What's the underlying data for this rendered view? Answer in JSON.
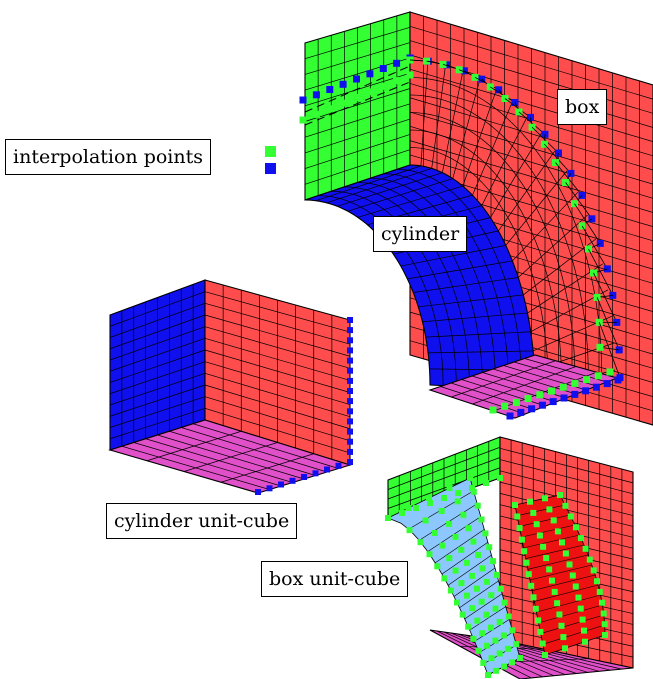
{
  "labels": {
    "interpolation_points": "interpolation points",
    "box": "box",
    "cylinder": "cylinder",
    "cylinder_unit_cube": "cylinder unit-cube",
    "box_unit_cube": "box unit-cube"
  },
  "colors": {
    "green": "#33ff33",
    "blue": "#1010ee",
    "red": "#ff4d4d",
    "magenta": "#e050c8",
    "light_blue": "#8cc8ff",
    "dark_red": "#ee1111",
    "grid_line": "#000000"
  }
}
